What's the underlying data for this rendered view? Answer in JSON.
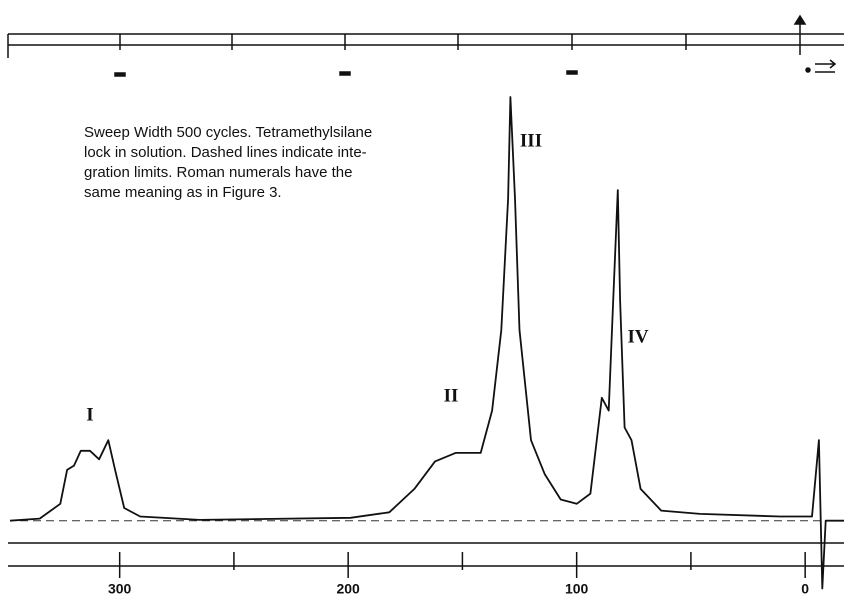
{
  "chart_data": {
    "type": "line",
    "caption": [
      "Sweep Width 500 cycles.  Tetramethylsilane",
      "lock in solution.  Dashed lines indicate inte-",
      "gration limits.  Roman numerals have the",
      "same meaning as in Figure 3."
    ],
    "annotations": [
      "I",
      "II",
      "III",
      "IV"
    ],
    "x": [
      348,
      335,
      326,
      323,
      320,
      317,
      313,
      309,
      305,
      302,
      298,
      291,
      265,
      199,
      182,
      171,
      162,
      153,
      142,
      137,
      133,
      130,
      129,
      127,
      125,
      120,
      114,
      107,
      100,
      94,
      89,
      86,
      84,
      82,
      81,
      79,
      76,
      72,
      63,
      46,
      11,
      -3,
      -6,
      -7.5,
      -9,
      -17
    ],
    "values": [
      0,
      0.5,
      4,
      12,
      13,
      16.5,
      16.5,
      14.5,
      19,
      12,
      3,
      1,
      0.2,
      0.7,
      2,
      7.5,
      14,
      16,
      16,
      26,
      45,
      76,
      100,
      76,
      45,
      19,
      11,
      5,
      4,
      6.4,
      29,
      26,
      52,
      78,
      52,
      22,
      19,
      7.5,
      2.4,
      1.6,
      1,
      1,
      19,
      -16,
      0,
      0
    ],
    "color": "#111111",
    "xlim": [
      348,
      -17
    ],
    "ylim": [
      -18,
      100
    ],
    "xticks": [
      300,
      200,
      100,
      0
    ],
    "xminorticks": [
      250,
      150,
      50
    ]
  }
}
